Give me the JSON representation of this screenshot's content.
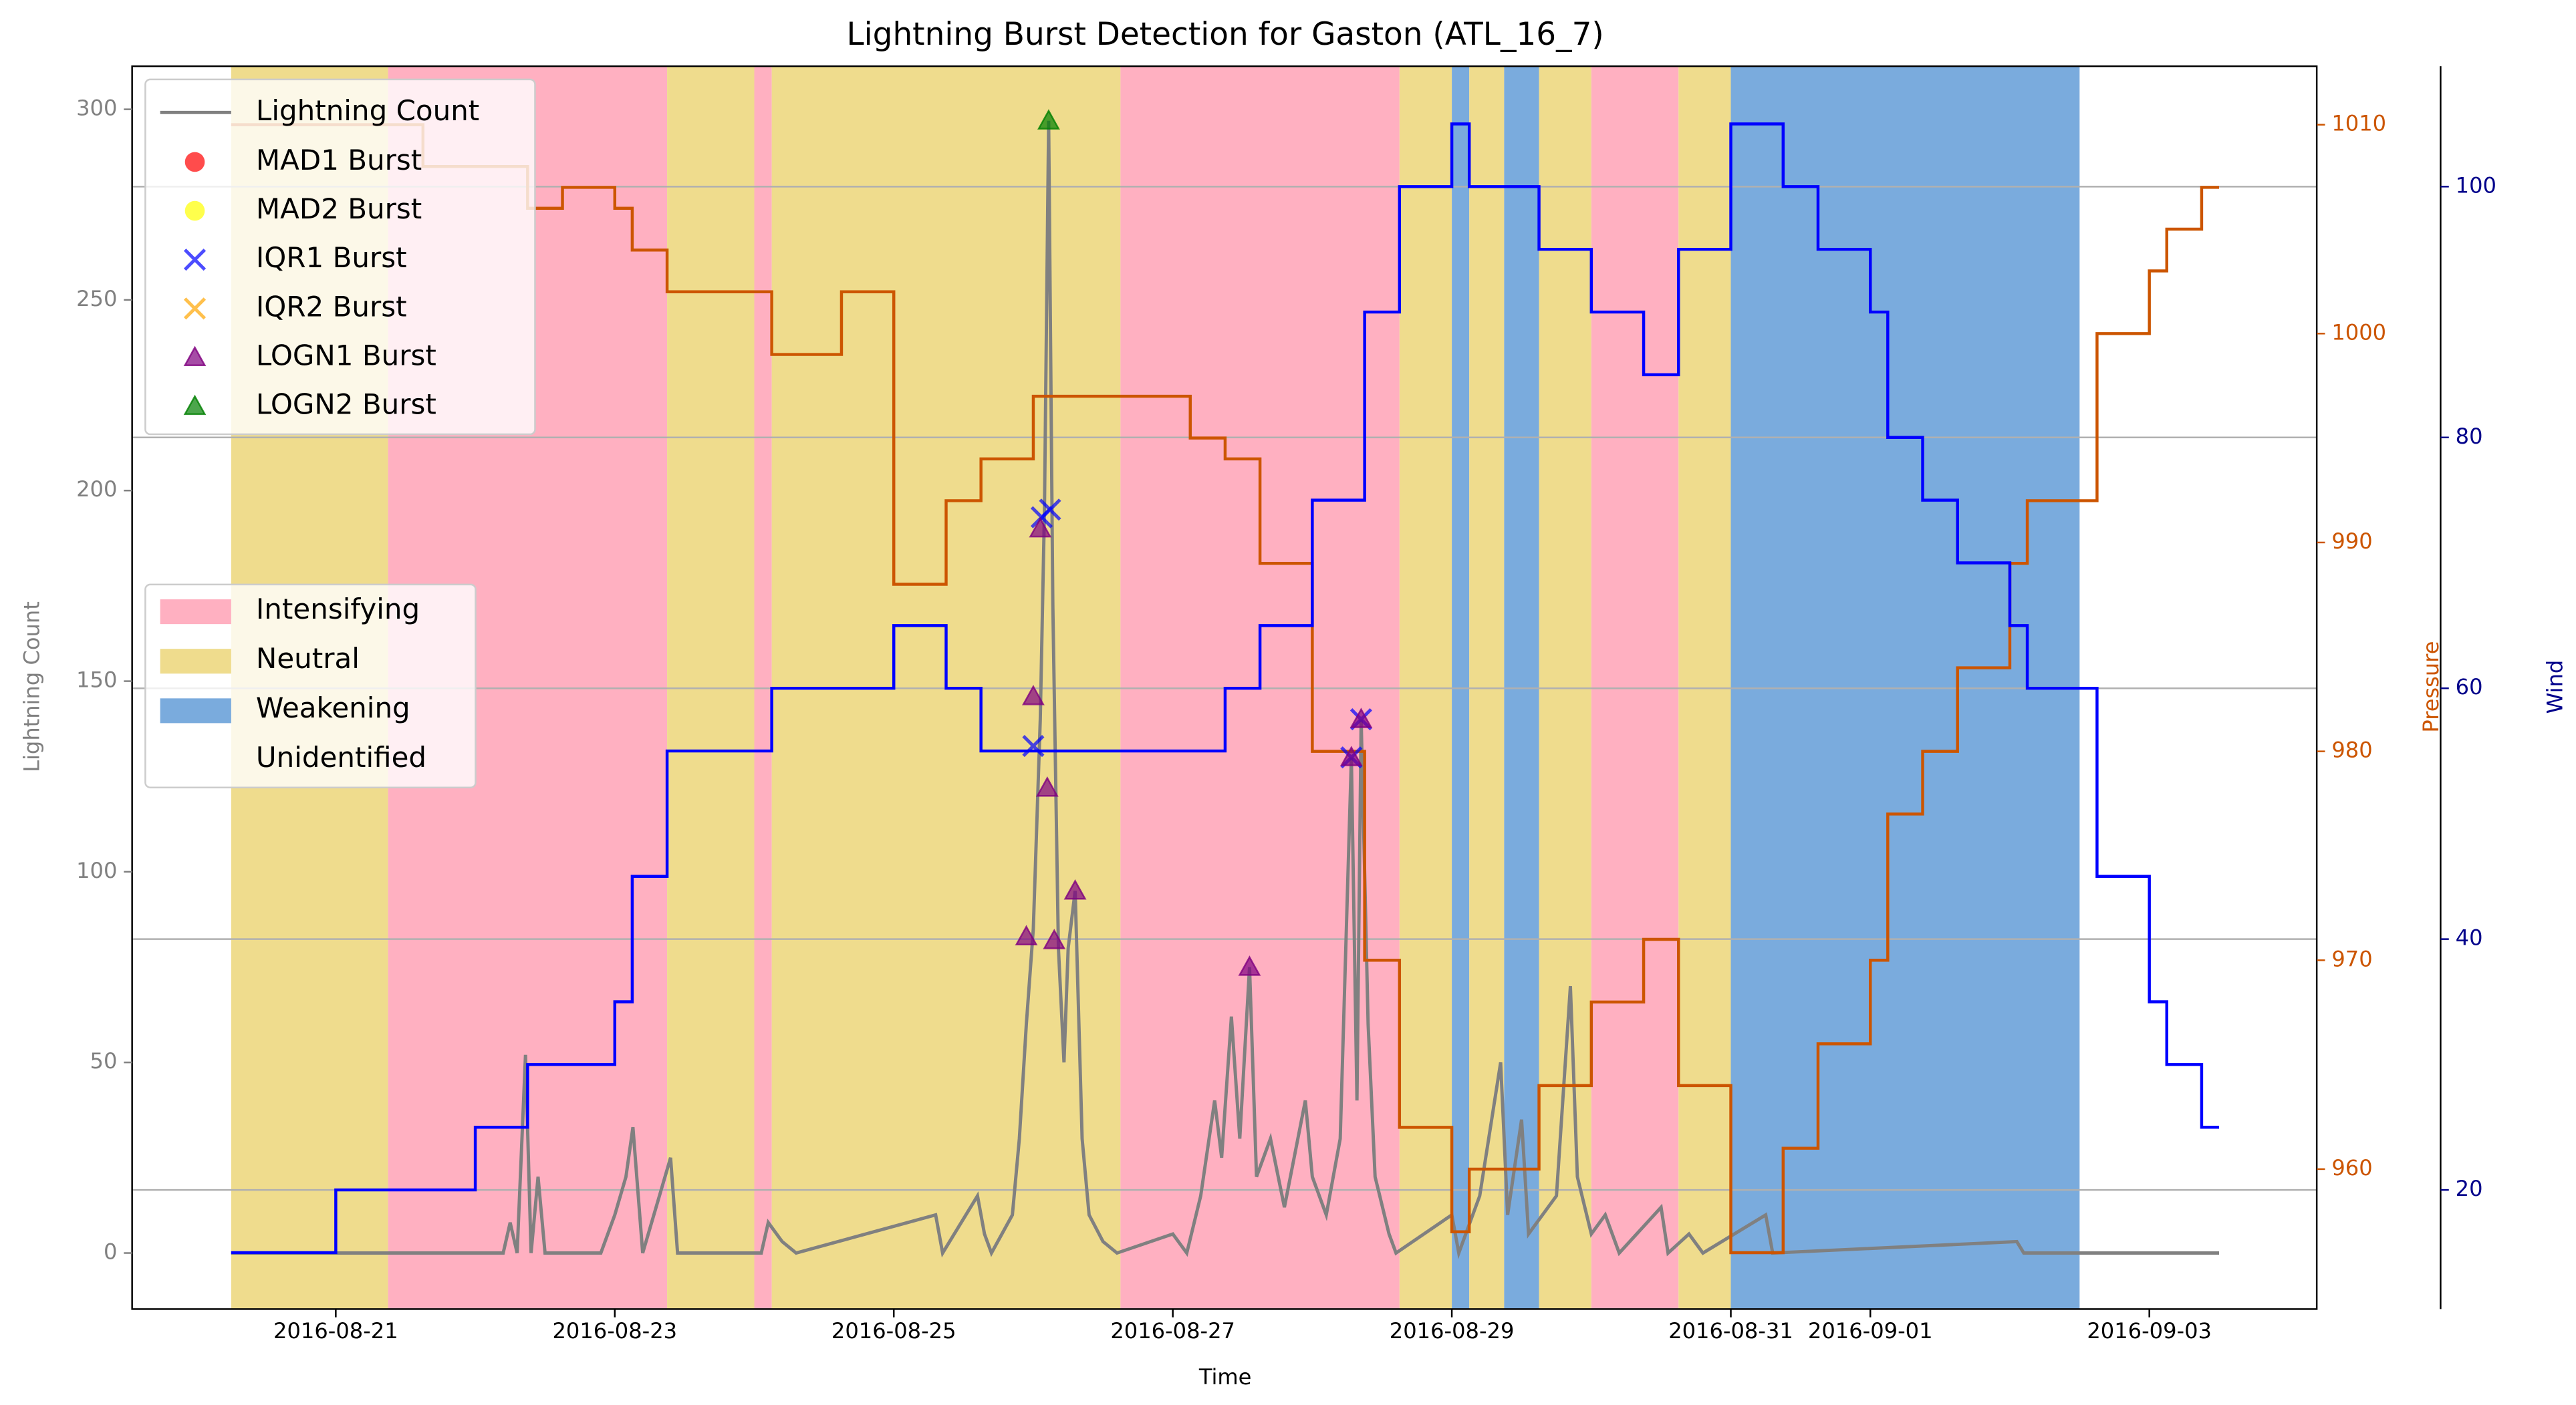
{
  "chart_data": {
    "type": "burst-timeline",
    "title": "Lightning Burst Detection for Gaston (ATL_16_7)",
    "x_label": "Time",
    "y_label": "Lightning Count",
    "y2_label": "Pressure",
    "y3_label": "Wind",
    "xlim": [
      19.54,
      35.2
    ],
    "xticks": [
      {
        "value": 21,
        "label": "2016-08-21"
      },
      {
        "value": 23,
        "label": "2016-08-23"
      },
      {
        "value": 25,
        "label": "2016-08-25"
      },
      {
        "value": 27,
        "label": "2016-08-27"
      },
      {
        "value": 29,
        "label": "2016-08-29"
      },
      {
        "value": 31,
        "label": "2016-08-31"
      },
      {
        "value": 32,
        "label": "2016-09-01"
      },
      {
        "value": 34,
        "label": "2016-09-03"
      }
    ],
    "ylim": [
      -14.7,
      311.3
    ],
    "yticks": [
      0,
      50,
      100,
      150,
      200,
      250,
      300
    ],
    "y2lim": [
      953.3,
      1012.8
    ],
    "y2ticks": [
      960,
      970,
      980,
      990,
      1000,
      1010
    ],
    "y3lim": [
      10.5,
      109.6
    ],
    "y3ticks": [
      20,
      40,
      60,
      80,
      100
    ],
    "grid": "y3",
    "states": [
      {
        "name": "Intensifying",
        "color": "#ffb0c1"
      },
      {
        "name": "Neutral",
        "color": "#efdc8d"
      },
      {
        "name": "Weakening",
        "color": "#7aabdd"
      },
      {
        "name": "Unidentified",
        "color": "#ffffff"
      }
    ],
    "regions": [
      {
        "start": 20.25,
        "end": 21.375,
        "state": "Neutral"
      },
      {
        "start": 21.375,
        "end": 23.375,
        "state": "Intensifying"
      },
      {
        "start": 23.375,
        "end": 24.0,
        "state": "Neutral"
      },
      {
        "start": 24.0,
        "end": 24.125,
        "state": "Intensifying"
      },
      {
        "start": 24.125,
        "end": 26.625,
        "state": "Neutral"
      },
      {
        "start": 26.625,
        "end": 28.625,
        "state": "Intensifying"
      },
      {
        "start": 28.625,
        "end": 29.0,
        "state": "Neutral"
      },
      {
        "start": 29.0,
        "end": 29.125,
        "state": "Weakening"
      },
      {
        "start": 29.125,
        "end": 29.375,
        "state": "Neutral"
      },
      {
        "start": 29.375,
        "end": 29.625,
        "state": "Weakening"
      },
      {
        "start": 29.625,
        "end": 30.0,
        "state": "Neutral"
      },
      {
        "start": 30.0,
        "end": 30.625,
        "state": "Intensifying"
      },
      {
        "start": 30.625,
        "end": 31.0,
        "state": "Neutral"
      },
      {
        "start": 31.0,
        "end": 33.5,
        "state": "Weakening"
      }
    ],
    "lightning": {
      "name": "Lightning Count",
      "color": "#808080",
      "x": [
        20.25,
        22.2,
        22.25,
        22.3,
        22.36,
        22.4,
        22.45,
        22.5,
        22.9,
        23.0,
        23.08,
        23.13,
        23.2,
        23.4,
        23.45,
        24.05,
        24.1,
        24.2,
        24.3,
        25.3,
        25.35,
        25.6,
        25.65,
        25.7,
        25.85,
        25.9,
        25.95,
        26.0,
        26.05,
        26.08,
        26.11,
        26.14,
        26.18,
        26.22,
        26.25,
        26.3,
        26.35,
        26.4,
        26.5,
        26.6,
        27.0,
        27.1,
        27.2,
        27.3,
        27.35,
        27.42,
        27.48,
        27.55,
        27.6,
        27.7,
        27.8,
        27.95,
        28.0,
        28.1,
        28.2,
        28.28,
        28.32,
        28.35,
        28.4,
        28.45,
        28.55,
        28.6,
        29.0,
        29.05,
        29.2,
        29.35,
        29.4,
        29.5,
        29.55,
        29.75,
        29.85,
        29.9,
        30.0,
        30.1,
        30.2,
        30.5,
        30.55,
        30.7,
        30.8,
        31.25,
        31.3,
        33.05,
        33.1,
        34.5
      ],
      "values": [
        0,
        0,
        8,
        0,
        52,
        0,
        20,
        0,
        0,
        10,
        20,
        33,
        0,
        25,
        0,
        0,
        8,
        3,
        0,
        10,
        0,
        15,
        5,
        0,
        10,
        30,
        60,
        85,
        140,
        195,
        297,
        170,
        80,
        50,
        80,
        95,
        30,
        10,
        3,
        0,
        5,
        0,
        15,
        40,
        25,
        62,
        30,
        75,
        20,
        30,
        12,
        40,
        20,
        10,
        30,
        130,
        40,
        140,
        60,
        20,
        5,
        0,
        10,
        0,
        15,
        50,
        10,
        35,
        5,
        15,
        70,
        20,
        5,
        10,
        0,
        12,
        0,
        5,
        0,
        10,
        0,
        3,
        0,
        0
      ]
    },
    "bursts": [
      {
        "name": "MAD1 Burst",
        "color": "#ff0000",
        "marker": "o",
        "x": [],
        "values": []
      },
      {
        "name": "MAD2 Burst",
        "color": "#ffff00",
        "marker": "o",
        "x": [],
        "values": []
      },
      {
        "name": "IQR1 Burst",
        "color": "#0000ff",
        "marker": "x",
        "x": [
          26.0,
          26.06,
          26.12,
          28.28,
          28.35
        ],
        "values": [
          133,
          193,
          195,
          130,
          140
        ]
      },
      {
        "name": "IQR2 Burst",
        "color": "#ffa500",
        "marker": "x",
        "x": [],
        "values": []
      },
      {
        "name": "LOGN1 Burst",
        "color": "#800080",
        "marker": "^",
        "x": [
          25.95,
          26.0,
          26.05,
          26.1,
          26.15,
          26.3,
          27.55,
          28.28,
          28.35
        ],
        "values": [
          83,
          146,
          190,
          122,
          82,
          95,
          75,
          130,
          140
        ]
      },
      {
        "name": "LOGN2 Burst",
        "color": "#008000",
        "marker": "^",
        "x": [
          26.11
        ],
        "values": [
          297
        ]
      }
    ],
    "pressure": {
      "color": "#cc5500",
      "x": [
        20.25,
        21.625,
        22.375,
        22.625,
        23.0,
        23.125,
        23.375,
        24.125,
        24.625,
        25.0,
        25.375,
        25.625,
        26.0,
        27.125,
        27.375,
        27.625,
        28.0,
        28.375,
        28.625,
        29.0,
        29.125,
        29.625,
        30.0,
        30.375,
        30.625,
        31.0,
        31.375,
        31.625,
        32.0,
        32.125,
        32.375,
        32.625,
        33.0,
        33.125,
        33.625,
        34.0,
        34.125,
        34.375,
        34.5
      ],
      "values": [
        1010,
        1008,
        1006,
        1007,
        1006,
        1004,
        1002,
        999,
        1002,
        988,
        992,
        994,
        997,
        995,
        994,
        989,
        980,
        970,
        962,
        957,
        960,
        964,
        968,
        971,
        964,
        956,
        961,
        966,
        970,
        977,
        980,
        984,
        989,
        992,
        1000,
        1003,
        1005,
        1007,
        1007
      ]
    },
    "wind": {
      "color": "#0000ff",
      "x": [
        20.25,
        21.0,
        22.0,
        22.375,
        23.0,
        23.125,
        23.375,
        24.125,
        25.0,
        25.375,
        25.625,
        27.375,
        27.625,
        28.0,
        28.375,
        28.625,
        29.0,
        29.125,
        29.625,
        30.0,
        30.375,
        30.625,
        31.0,
        31.375,
        31.625,
        32.0,
        32.125,
        32.375,
        32.625,
        33.0,
        33.125,
        33.625,
        34.0,
        34.125,
        34.375,
        34.5
      ],
      "values": [
        15,
        20,
        25,
        30,
        35,
        45,
        55,
        60,
        65,
        60,
        55,
        60,
        65,
        75,
        90,
        100,
        105,
        100,
        95,
        90,
        85,
        95,
        105,
        100,
        95,
        90,
        80,
        75,
        70,
        65,
        60,
        45,
        35,
        30,
        25,
        25
      ]
    }
  }
}
